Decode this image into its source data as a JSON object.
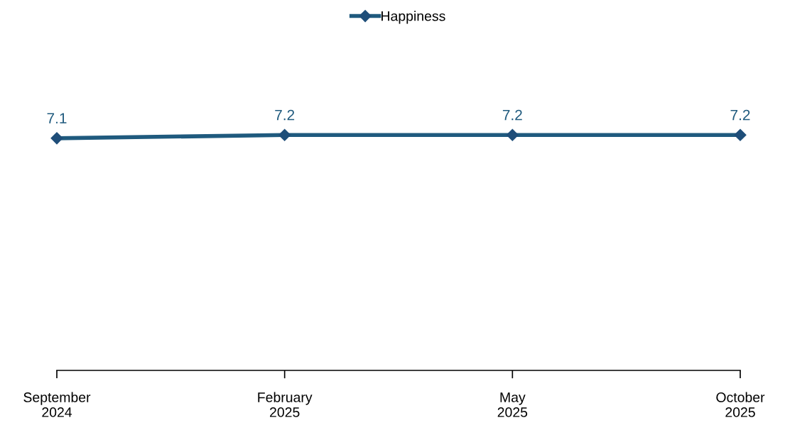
{
  "chart_data": {
    "type": "line",
    "categories": [
      "September\n2024",
      "February\n2025",
      "May\n2025",
      "October\n2025"
    ],
    "series": [
      {
        "name": "Happiness",
        "color": "#1f5a7e",
        "values": [
          7.1,
          7.2,
          7.2,
          7.2
        ]
      }
    ],
    "tick_labels": "x",
    "data_labels": true,
    "marker": "diamond",
    "line_style": "solid",
    "grid": false,
    "legend": "top"
  }
}
